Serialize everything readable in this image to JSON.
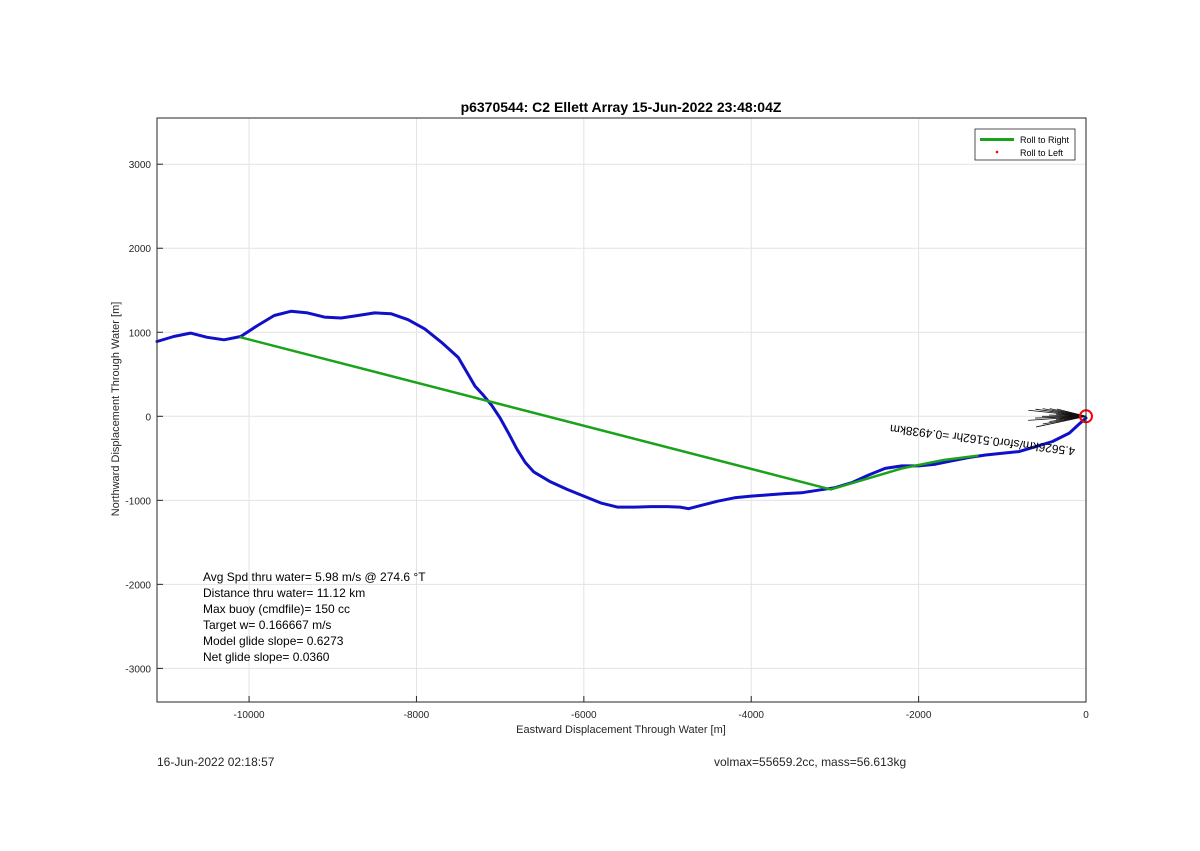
{
  "chart_data": {
    "type": "line",
    "title": "p6370544: C2 Ellett Array 15-Jun-2022 23:48:04Z",
    "xlabel": "Eastward Displacement Through Water [m]",
    "ylabel": "Northward Displacement Through Water [m]",
    "xlim": [
      -11100,
      0
    ],
    "ylim": [
      -3400,
      3550
    ],
    "xticks": [
      -10000,
      -8000,
      -6000,
      -4000,
      -2000,
      0
    ],
    "yticks": [
      -3000,
      -2000,
      -1000,
      0,
      1000,
      2000,
      3000
    ],
    "xtick_labels": [
      "-10000",
      "-8000",
      "-6000",
      "-4000",
      "-2000",
      "0"
    ],
    "ytick_labels": [
      "-3000",
      "-2000",
      "-1000",
      "0",
      "1000",
      "2000",
      "3000"
    ],
    "grid": true,
    "legend_position": "top-right",
    "legend": [
      {
        "label": "Roll to Right",
        "color": "#1aa31a",
        "style": "line"
      },
      {
        "label": "Roll to Left",
        "color": "#ff0000",
        "style": "dot"
      }
    ],
    "series": [
      {
        "name": "Roll to Right",
        "color": "#1aa31a",
        "x": [
          -10100,
          -3050,
          -2200,
          -1700,
          -1300
        ],
        "y": [
          940,
          -870,
          -620,
          -520,
          -470
        ]
      },
      {
        "color": "#1010c8",
        "x": [
          -11100,
          -10900,
          -10700,
          -10500,
          -10300,
          -10100,
          -9900,
          -9700,
          -9500,
          -9300,
          -9100,
          -8900,
          -8700,
          -8500,
          -8300,
          -8100,
          -7900,
          -7700,
          -7500,
          -7300,
          -7200,
          -7100,
          -7000,
          -6900,
          -6800,
          -6700,
          -6600,
          -6400,
          -6200,
          -6000,
          -5800,
          -5600,
          -5400,
          -5200,
          -5000,
          -4850,
          -4750,
          -4600,
          -4400,
          -4200,
          -4000,
          -3800,
          -3600,
          -3400,
          -3200,
          -3000,
          -2800,
          -2600,
          -2400,
          -2200,
          -2000,
          -1800,
          -1600,
          -1400,
          -1200,
          -1000,
          -800,
          -600,
          -400,
          -200,
          -80,
          0
        ],
        "y": [
          890,
          950,
          990,
          940,
          910,
          950,
          1080,
          1200,
          1250,
          1230,
          1180,
          1170,
          1200,
          1230,
          1220,
          1150,
          1040,
          880,
          700,
          360,
          250,
          130,
          -20,
          -200,
          -390,
          -550,
          -660,
          -780,
          -870,
          -950,
          -1030,
          -1080,
          -1080,
          -1075,
          -1075,
          -1080,
          -1100,
          -1060,
          -1010,
          -970,
          -950,
          -935,
          -920,
          -910,
          -880,
          -850,
          -790,
          -700,
          -620,
          -590,
          -590,
          -570,
          -530,
          -490,
          -460,
          -440,
          -420,
          -360,
          -300,
          -200,
          -90,
          -20
        ]
      }
    ],
    "annotations": {
      "track_label": "4.5626km/sfor0.5162hr =0.4938km",
      "stats": [
        "Avg Spd thru water=  5.98 m/s @ 274.6 °T",
        "Distance thru water= 11.12 km",
        "Max buoy (cmdfile)= 150 cc",
        "Target w= 0.166667 m/s",
        "Model glide slope= 0.6273",
        "Net glide slope= 0.0360"
      ]
    },
    "end_marker": {
      "x": 0,
      "y": 0,
      "color": "#ff0000"
    }
  },
  "footer": {
    "timestamp": "16-Jun-2022 02:18:57",
    "mass_info": "volmax=55659.2cc, mass=56.613kg"
  }
}
